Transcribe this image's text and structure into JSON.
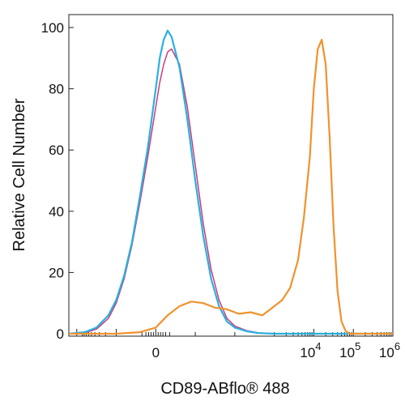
{
  "chart_data": {
    "type": "line",
    "title": "",
    "xlabel": "CD89-ABflo® 488",
    "ylabel": "Relative Cell Number",
    "x_scale": "biexponential",
    "x_tick_labels": [
      {
        "base": "0",
        "exp": ""
      },
      {
        "base": "10",
        "exp": "4"
      },
      {
        "base": "10",
        "exp": "5"
      },
      {
        "base": "10",
        "exp": "6"
      }
    ],
    "y_ticks": [
      0,
      20,
      40,
      60,
      80,
      100
    ],
    "ylim": [
      0,
      100
    ],
    "grid": false,
    "legend": "none",
    "series": [
      {
        "color": "#cc3b7d",
        "x": [
          -2.2,
          -1.8,
          -1.5,
          -1.2,
          -1.0,
          -0.8,
          -0.6,
          -0.4,
          -0.2,
          0.0,
          0.1,
          0.2,
          0.3,
          0.4,
          0.6,
          0.8,
          1.0,
          1.2,
          1.4,
          1.6,
          1.8,
          2.0,
          2.3,
          2.6,
          3.0,
          6.0
        ],
        "y": [
          0,
          0.3,
          1.5,
          5,
          10,
          18,
          29,
          43,
          58,
          74,
          82,
          88,
          92,
          93,
          88,
          74,
          55,
          36,
          21,
          11,
          5,
          2.5,
          1,
          0.3,
          0,
          0
        ]
      },
      {
        "color": "#2ab0e0",
        "x": [
          -2.2,
          -1.8,
          -1.5,
          -1.2,
          -1.0,
          -0.8,
          -0.6,
          -0.4,
          -0.2,
          0.0,
          0.1,
          0.2,
          0.3,
          0.4,
          0.6,
          0.8,
          1.0,
          1.2,
          1.4,
          1.6,
          1.8,
          2.0,
          2.3,
          2.6,
          3.0,
          6.0
        ],
        "y": [
          0,
          0.5,
          2,
          6,
          11,
          19,
          30,
          45,
          61,
          80,
          90,
          96,
          99,
          97,
          87,
          70,
          50,
          32,
          18,
          9,
          4,
          2,
          0.8,
          0.2,
          0,
          0
        ]
      },
      {
        "color": "#f0922e",
        "x": [
          -2.2,
          -1.0,
          -0.4,
          0.0,
          0.3,
          0.6,
          0.9,
          1.2,
          1.5,
          1.8,
          2.1,
          2.4,
          2.7,
          3.0,
          3.2,
          3.4,
          3.6,
          3.75,
          3.9,
          4.0,
          4.1,
          4.2,
          4.3,
          4.4,
          4.5,
          4.6,
          4.7,
          4.8,
          4.9,
          5.2,
          6.0
        ],
        "y": [
          0,
          0,
          0.5,
          2,
          6,
          9,
          10.5,
          10,
          8.5,
          8,
          6.5,
          7,
          6,
          9,
          11,
          15,
          24,
          38,
          58,
          80,
          93,
          96,
          88,
          64,
          35,
          14,
          4,
          1,
          0,
          0,
          0
        ]
      }
    ]
  }
}
